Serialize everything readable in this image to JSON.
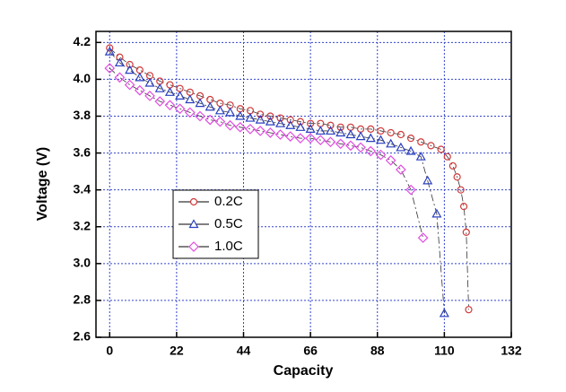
{
  "chart_data": {
    "type": "line",
    "x_label": "Capacity",
    "y_label": "Voltage (V)",
    "xlim": [
      -4.5,
      132
    ],
    "xticks": [
      0,
      22,
      44,
      66,
      88,
      110,
      132
    ],
    "ylim": [
      2.6,
      4.26
    ],
    "yticks": [
      2.6,
      2.8,
      {
        "value": 3,
        "label": "3.0"
      },
      3.2,
      3.4,
      3.6,
      3.8,
      {
        "value": 4,
        "label": "4.0"
      },
      4.2
    ],
    "grid": true,
    "legend": "lower left",
    "series": [
      {
        "name": "0.2C",
        "color": "#d03a3a",
        "marker": "circle",
        "x": [
          0,
          3.3,
          6.6,
          9.9,
          13.2,
          16.5,
          19.8,
          23.1,
          26.4,
          29.7,
          33,
          36.3,
          39.6,
          42.9,
          46.2,
          49.5,
          52.8,
          56.1,
          59.4,
          62.7,
          66,
          69.3,
          72.6,
          75.9,
          79.2,
          82.5,
          85.8,
          89.1,
          92.4,
          95.7,
          99,
          102.3,
          105.6,
          108.9,
          111,
          112.8,
          114.2,
          115.4,
          116.4,
          117.2,
          118
        ],
        "values": [
          4.17,
          4.12,
          4.08,
          4.05,
          4.02,
          3.99,
          3.97,
          3.95,
          3.93,
          3.91,
          3.89,
          3.87,
          3.86,
          3.84,
          3.83,
          3.81,
          3.8,
          3.79,
          3.78,
          3.77,
          3.76,
          3.76,
          3.75,
          3.74,
          3.74,
          3.73,
          3.73,
          3.72,
          3.71,
          3.7,
          3.68,
          3.66,
          3.64,
          3.62,
          3.58,
          3.53,
          3.47,
          3.4,
          3.31,
          3.17,
          2.75
        ]
      },
      {
        "name": "0.5C",
        "color": "#2a3fc0",
        "marker": "triangle",
        "x": [
          0,
          3.3,
          6.6,
          9.9,
          13.2,
          16.5,
          19.8,
          23.1,
          26.4,
          29.7,
          33,
          36.3,
          39.6,
          42.9,
          46.2,
          49.5,
          52.8,
          56.1,
          59.4,
          62.7,
          66,
          69.3,
          72.6,
          75.9,
          79.2,
          82.5,
          85.8,
          89.1,
          92.4,
          95.7,
          99,
          102.3,
          104.5,
          107.5,
          110
        ],
        "values": [
          4.15,
          4.09,
          4.05,
          4.01,
          3.98,
          3.95,
          3.93,
          3.91,
          3.89,
          3.87,
          3.85,
          3.83,
          3.82,
          3.8,
          3.79,
          3.78,
          3.77,
          3.76,
          3.75,
          3.74,
          3.73,
          3.72,
          3.72,
          3.71,
          3.7,
          3.69,
          3.68,
          3.67,
          3.65,
          3.63,
          3.61,
          3.58,
          3.45,
          3.27,
          2.73
        ]
      },
      {
        "name": "1.0C",
        "color": "#e04ee0",
        "marker": "diamond",
        "x": [
          0,
          3.3,
          6.6,
          9.9,
          13.2,
          16.5,
          19.8,
          23.1,
          26.4,
          29.7,
          33,
          36.3,
          39.6,
          42.9,
          46.2,
          49.5,
          52.8,
          56.1,
          59.4,
          62.7,
          66,
          69.3,
          72.6,
          75.9,
          79.2,
          82.5,
          85.8,
          89.1,
          92.4,
          95.7,
          99,
          103
        ],
        "values": [
          4.06,
          4.01,
          3.97,
          3.94,
          3.91,
          3.88,
          3.86,
          3.84,
          3.82,
          3.8,
          3.78,
          3.77,
          3.75,
          3.74,
          3.73,
          3.72,
          3.71,
          3.7,
          3.69,
          3.68,
          3.68,
          3.67,
          3.66,
          3.65,
          3.64,
          3.63,
          3.61,
          3.59,
          3.56,
          3.51,
          3.4,
          3.14
        ]
      }
    ]
  }
}
